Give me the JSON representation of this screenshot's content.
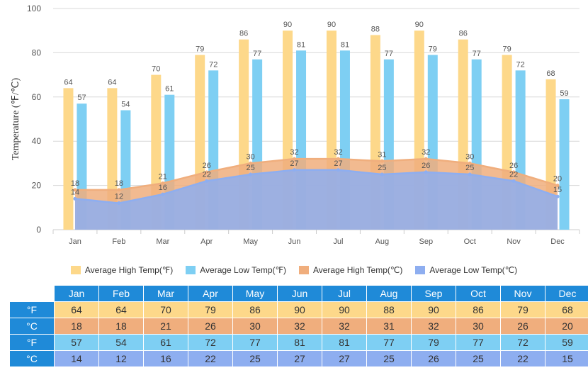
{
  "chart_data": {
    "type": "bar",
    "categories": [
      "Jan",
      "Feb",
      "Mar",
      "Apr",
      "May",
      "Jun",
      "Jul",
      "Aug",
      "Sep",
      "Oct",
      "Nov",
      "Dec"
    ],
    "ylabel": "Temperature (℉/℃)",
    "ylim": [
      0,
      100
    ],
    "yticks": [
      0,
      20,
      40,
      60,
      80,
      100
    ],
    "grid": true,
    "legend_position": "bottom",
    "series": [
      {
        "name": "Average High Temp(℉)",
        "kind": "bar",
        "color": "#fdd88a",
        "values": [
          64,
          64,
          70,
          79,
          86,
          90,
          90,
          88,
          90,
          86,
          79,
          68
        ]
      },
      {
        "name": "Average Low Temp(℉)",
        "kind": "bar",
        "color": "#7ecff3",
        "values": [
          57,
          54,
          61,
          72,
          77,
          81,
          81,
          77,
          79,
          77,
          72,
          59
        ]
      },
      {
        "name": "Average High Temp(℃)",
        "kind": "area",
        "color": "#f0ae7d",
        "values": [
          18,
          18,
          21,
          26,
          30,
          32,
          32,
          31,
          32,
          30,
          26,
          20
        ]
      },
      {
        "name": "Average Low Temp(℃)",
        "kind": "area",
        "color": "#8eaef0",
        "values": [
          14,
          12,
          16,
          22,
          25,
          27,
          27,
          25,
          26,
          25,
          22,
          15
        ]
      }
    ]
  },
  "table": {
    "months": [
      "Jan",
      "Feb",
      "Mar",
      "Apr",
      "May",
      "Jun",
      "Jul",
      "Aug",
      "Sep",
      "Oct",
      "Nov",
      "Dec"
    ],
    "rows": [
      {
        "unit": "°F",
        "values": [
          "64",
          "64",
          "70",
          "79",
          "86",
          "90",
          "90",
          "88",
          "90",
          "86",
          "79",
          "68"
        ]
      },
      {
        "unit": "°C",
        "values": [
          "18",
          "18",
          "21",
          "26",
          "30",
          "32",
          "32",
          "31",
          "32",
          "30",
          "26",
          "20"
        ]
      },
      {
        "unit": "°F",
        "values": [
          "57",
          "54",
          "61",
          "72",
          "77",
          "81",
          "81",
          "77",
          "79",
          "77",
          "72",
          "59"
        ]
      },
      {
        "unit": "°C",
        "values": [
          "14",
          "12",
          "16",
          "22",
          "25",
          "27",
          "27",
          "25",
          "26",
          "25",
          "22",
          "15"
        ]
      }
    ]
  }
}
